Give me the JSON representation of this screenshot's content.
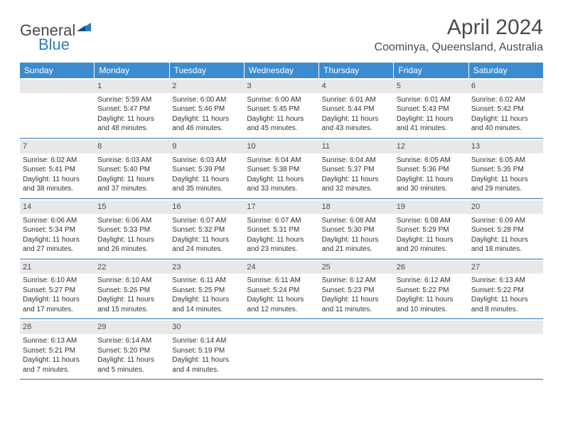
{
  "branding": {
    "text1": "General",
    "text2": "Blue",
    "color_dark": "#4a4a4a",
    "color_blue": "#2e7ac0"
  },
  "title": "April 2024",
  "location": "Coominya, Queensland, Australia",
  "colors": {
    "header_bg": "#3b8bcf",
    "header_text": "#ffffff",
    "row_border": "#2e6fa8",
    "date_strip_bg": "#e8e8e8",
    "text": "#323232"
  },
  "weekdays": [
    "Sunday",
    "Monday",
    "Tuesday",
    "Wednesday",
    "Thursday",
    "Friday",
    "Saturday"
  ],
  "weeks": [
    [
      {
        "empty": true
      },
      {
        "date": "1",
        "sunrise": "5:59 AM",
        "sunset": "5:47 PM",
        "daylight": "11 hours and 48 minutes."
      },
      {
        "date": "2",
        "sunrise": "6:00 AM",
        "sunset": "5:46 PM",
        "daylight": "11 hours and 46 minutes."
      },
      {
        "date": "3",
        "sunrise": "6:00 AM",
        "sunset": "5:45 PM",
        "daylight": "11 hours and 45 minutes."
      },
      {
        "date": "4",
        "sunrise": "6:01 AM",
        "sunset": "5:44 PM",
        "daylight": "11 hours and 43 minutes."
      },
      {
        "date": "5",
        "sunrise": "6:01 AM",
        "sunset": "5:43 PM",
        "daylight": "11 hours and 41 minutes."
      },
      {
        "date": "6",
        "sunrise": "6:02 AM",
        "sunset": "5:42 PM",
        "daylight": "11 hours and 40 minutes."
      }
    ],
    [
      {
        "date": "7",
        "sunrise": "6:02 AM",
        "sunset": "5:41 PM",
        "daylight": "11 hours and 38 minutes."
      },
      {
        "date": "8",
        "sunrise": "6:03 AM",
        "sunset": "5:40 PM",
        "daylight": "11 hours and 37 minutes."
      },
      {
        "date": "9",
        "sunrise": "6:03 AM",
        "sunset": "5:39 PM",
        "daylight": "11 hours and 35 minutes."
      },
      {
        "date": "10",
        "sunrise": "6:04 AM",
        "sunset": "5:38 PM",
        "daylight": "11 hours and 33 minutes."
      },
      {
        "date": "11",
        "sunrise": "6:04 AM",
        "sunset": "5:37 PM",
        "daylight": "11 hours and 32 minutes."
      },
      {
        "date": "12",
        "sunrise": "6:05 AM",
        "sunset": "5:36 PM",
        "daylight": "11 hours and 30 minutes."
      },
      {
        "date": "13",
        "sunrise": "6:05 AM",
        "sunset": "5:35 PM",
        "daylight": "11 hours and 29 minutes."
      }
    ],
    [
      {
        "date": "14",
        "sunrise": "6:06 AM",
        "sunset": "5:34 PM",
        "daylight": "11 hours and 27 minutes."
      },
      {
        "date": "15",
        "sunrise": "6:06 AM",
        "sunset": "5:33 PM",
        "daylight": "11 hours and 26 minutes."
      },
      {
        "date": "16",
        "sunrise": "6:07 AM",
        "sunset": "5:32 PM",
        "daylight": "11 hours and 24 minutes."
      },
      {
        "date": "17",
        "sunrise": "6:07 AM",
        "sunset": "5:31 PM",
        "daylight": "11 hours and 23 minutes."
      },
      {
        "date": "18",
        "sunrise": "6:08 AM",
        "sunset": "5:30 PM",
        "daylight": "11 hours and 21 minutes."
      },
      {
        "date": "19",
        "sunrise": "6:08 AM",
        "sunset": "5:29 PM",
        "daylight": "11 hours and 20 minutes."
      },
      {
        "date": "20",
        "sunrise": "6:09 AM",
        "sunset": "5:28 PM",
        "daylight": "11 hours and 18 minutes."
      }
    ],
    [
      {
        "date": "21",
        "sunrise": "6:10 AM",
        "sunset": "5:27 PM",
        "daylight": "11 hours and 17 minutes."
      },
      {
        "date": "22",
        "sunrise": "6:10 AM",
        "sunset": "5:26 PM",
        "daylight": "11 hours and 15 minutes."
      },
      {
        "date": "23",
        "sunrise": "6:11 AM",
        "sunset": "5:25 PM",
        "daylight": "11 hours and 14 minutes."
      },
      {
        "date": "24",
        "sunrise": "6:11 AM",
        "sunset": "5:24 PM",
        "daylight": "11 hours and 12 minutes."
      },
      {
        "date": "25",
        "sunrise": "6:12 AM",
        "sunset": "5:23 PM",
        "daylight": "11 hours and 11 minutes."
      },
      {
        "date": "26",
        "sunrise": "6:12 AM",
        "sunset": "5:22 PM",
        "daylight": "11 hours and 10 minutes."
      },
      {
        "date": "27",
        "sunrise": "6:13 AM",
        "sunset": "5:22 PM",
        "daylight": "11 hours and 8 minutes."
      }
    ],
    [
      {
        "date": "28",
        "sunrise": "6:13 AM",
        "sunset": "5:21 PM",
        "daylight": "11 hours and 7 minutes."
      },
      {
        "date": "29",
        "sunrise": "6:14 AM",
        "sunset": "5:20 PM",
        "daylight": "11 hours and 5 minutes."
      },
      {
        "date": "30",
        "sunrise": "6:14 AM",
        "sunset": "5:19 PM",
        "daylight": "11 hours and 4 minutes."
      },
      {
        "empty": true
      },
      {
        "empty": true
      },
      {
        "empty": true
      },
      {
        "empty": true
      }
    ]
  ],
  "labels": {
    "sunrise_prefix": "Sunrise: ",
    "sunset_prefix": "Sunset: ",
    "daylight_prefix": "Daylight: "
  }
}
